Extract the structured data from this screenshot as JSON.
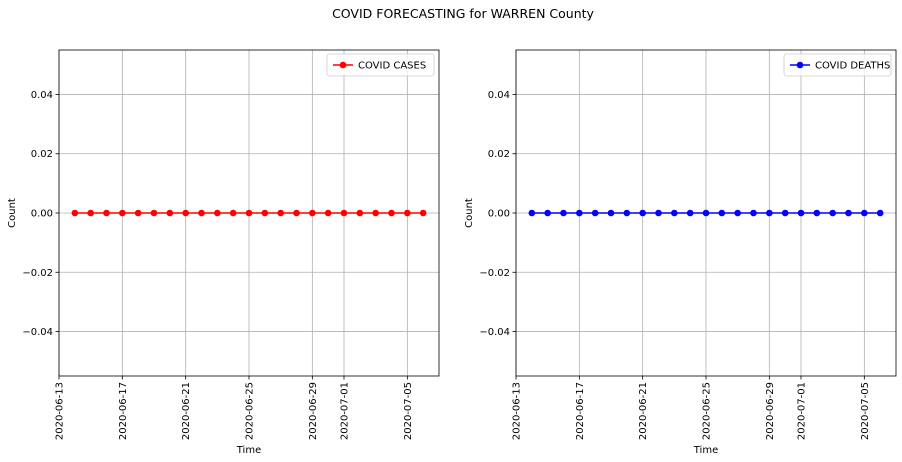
{
  "figure": {
    "suptitle": "COVID FORECASTING for WARREN County"
  },
  "chart_data": [
    {
      "type": "line",
      "xlabel": "Time",
      "ylabel": "Count",
      "ylim": [
        -0.055,
        0.055
      ],
      "xlim": [
        "2020-06-13",
        "2020-07-07"
      ],
      "yticks": [
        -0.04,
        -0.02,
        0.0,
        0.02,
        0.04
      ],
      "ytick_labels": [
        "−0.04",
        "−0.02",
        "0.00",
        "0.02",
        "0.04"
      ],
      "xticks": [
        "2020-06-13",
        "2020-06-17",
        "2020-06-21",
        "2020-06-25",
        "2020-06-29",
        "2020-07-01",
        "2020-07-05"
      ],
      "grid": true,
      "legend": "top-right",
      "series": [
        {
          "name": "COVID CASES",
          "color": "#ff0000",
          "marker": "circle",
          "x": [
            "2020-06-14",
            "2020-06-15",
            "2020-06-16",
            "2020-06-17",
            "2020-06-18",
            "2020-06-19",
            "2020-06-20",
            "2020-06-21",
            "2020-06-22",
            "2020-06-23",
            "2020-06-24",
            "2020-06-25",
            "2020-06-26",
            "2020-06-27",
            "2020-06-28",
            "2020-06-29",
            "2020-06-30",
            "2020-07-01",
            "2020-07-02",
            "2020-07-03",
            "2020-07-04",
            "2020-07-05",
            "2020-07-06"
          ],
          "values": [
            0,
            0,
            0,
            0,
            0,
            0,
            0,
            0,
            0,
            0,
            0,
            0,
            0,
            0,
            0,
            0,
            0,
            0,
            0,
            0,
            0,
            0,
            0
          ]
        }
      ]
    },
    {
      "type": "line",
      "xlabel": "Time",
      "ylabel": "Count",
      "ylim": [
        -0.055,
        0.055
      ],
      "xlim": [
        "2020-06-13",
        "2020-07-07"
      ],
      "yticks": [
        -0.04,
        -0.02,
        0.0,
        0.02,
        0.04
      ],
      "ytick_labels": [
        "−0.04",
        "−0.02",
        "0.00",
        "0.02",
        "0.04"
      ],
      "xticks": [
        "2020-06-13",
        "2020-06-17",
        "2020-06-21",
        "2020-06-25",
        "2020-06-29",
        "2020-07-01",
        "2020-07-05"
      ],
      "grid": true,
      "legend": "top-right",
      "series": [
        {
          "name": "COVID DEATHS",
          "color": "#0000ff",
          "marker": "circle",
          "x": [
            "2020-06-14",
            "2020-06-15",
            "2020-06-16",
            "2020-06-17",
            "2020-06-18",
            "2020-06-19",
            "2020-06-20",
            "2020-06-21",
            "2020-06-22",
            "2020-06-23",
            "2020-06-24",
            "2020-06-25",
            "2020-06-26",
            "2020-06-27",
            "2020-06-28",
            "2020-06-29",
            "2020-06-30",
            "2020-07-01",
            "2020-07-02",
            "2020-07-03",
            "2020-07-04",
            "2020-07-05",
            "2020-07-06"
          ],
          "values": [
            0,
            0,
            0,
            0,
            0,
            0,
            0,
            0,
            0,
            0,
            0,
            0,
            0,
            0,
            0,
            0,
            0,
            0,
            0,
            0,
            0,
            0,
            0
          ]
        }
      ]
    }
  ]
}
